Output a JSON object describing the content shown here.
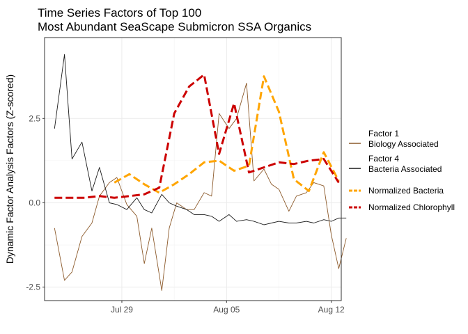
{
  "chart_data": {
    "type": "line",
    "title_lines": [
      "Time Series Factors of Top 100",
      "Most Abundant SeaScape Submicron SSA Organics"
    ],
    "xlabel": "",
    "ylabel": "Dynamic Factor Analysis Factors (Z-scored)",
    "x_is_date": true,
    "x_ticks": [
      {
        "value": "2019-07-29",
        "label": "Jul 29"
      },
      {
        "value": "2019-08-05",
        "label": "Aug 05"
      },
      {
        "value": "2019-08-12",
        "label": "Aug 12"
      }
    ],
    "y_ticks": [
      -2.5,
      0.0,
      2.5
    ],
    "y_tick_labels": [
      "-2.5",
      "0.0",
      "2.5"
    ],
    "xlim": [
      "2019-07-23T20:00",
      "2019-08-12T16:00"
    ],
    "ylim": [
      -2.9,
      4.9
    ],
    "grid": true,
    "legend_position": "right",
    "series": [
      {
        "name": [
          "Factor 1",
          "Biology Associated"
        ],
        "color": "#8c5a2b",
        "style": "solid",
        "width": "thin",
        "points": [
          [
            "2019-07-24T12:00",
            -0.75
          ],
          [
            "2019-07-25T04:00",
            -2.3
          ],
          [
            "2019-07-25T16:00",
            -2.05
          ],
          [
            "2019-07-26T08:00",
            -1.0
          ],
          [
            "2019-07-27T00:00",
            -0.6
          ],
          [
            "2019-07-27T12:00",
            0.2
          ],
          [
            "2019-07-28T04:00",
            0.6
          ],
          [
            "2019-07-28T16:00",
            0.75
          ],
          [
            "2019-07-29T08:00",
            -0.05
          ],
          [
            "2019-07-30T00:00",
            -0.4
          ],
          [
            "2019-07-30T12:00",
            -1.8
          ],
          [
            "2019-07-31T00:00",
            -0.75
          ],
          [
            "2019-07-31T16:00",
            -2.6
          ],
          [
            "2019-08-01T04:00",
            -0.75
          ],
          [
            "2019-08-01T16:00",
            0.0
          ],
          [
            "2019-08-02T08:00",
            -0.2
          ],
          [
            "2019-08-02T20:00",
            -0.2
          ],
          [
            "2019-08-03T12:00",
            0.3
          ],
          [
            "2019-08-04T00:00",
            0.2
          ],
          [
            "2019-08-04T12:00",
            2.65
          ],
          [
            "2019-08-05T04:00",
            2.2
          ],
          [
            "2019-08-05T16:00",
            2.5
          ],
          [
            "2019-08-06T08:00",
            3.55
          ],
          [
            "2019-08-06T20:00",
            0.65
          ],
          [
            "2019-08-07T12:00",
            1.0
          ],
          [
            "2019-08-08T00:00",
            0.55
          ],
          [
            "2019-08-08T12:00",
            0.4
          ],
          [
            "2019-08-09T04:00",
            -0.25
          ],
          [
            "2019-08-09T16:00",
            0.2
          ],
          [
            "2019-08-10T08:00",
            0.3
          ],
          [
            "2019-08-10T20:00",
            0.6
          ],
          [
            "2019-08-11T12:00",
            0.5
          ],
          [
            "2019-08-12T00:00",
            -0.95
          ],
          [
            "2019-08-12T12:00",
            -1.95
          ],
          [
            "2019-08-13T00:00",
            -1.05
          ]
        ]
      },
      {
        "name": [
          "Factor 4",
          "Bacteria Associated"
        ],
        "color": "#1a1a1a",
        "style": "solid",
        "width": "thin",
        "points": [
          [
            "2019-07-24T12:00",
            2.2
          ],
          [
            "2019-07-25T04:00",
            4.4
          ],
          [
            "2019-07-25T16:00",
            1.3
          ],
          [
            "2019-07-26T08:00",
            1.8
          ],
          [
            "2019-07-27T00:00",
            0.35
          ],
          [
            "2019-07-27T12:00",
            1.05
          ],
          [
            "2019-07-28T04:00",
            0.0
          ],
          [
            "2019-07-28T16:00",
            -0.05
          ],
          [
            "2019-07-29T08:00",
            -0.2
          ],
          [
            "2019-07-30T00:00",
            0.15
          ],
          [
            "2019-07-30T12:00",
            -0.2
          ],
          [
            "2019-07-31T00:00",
            -0.3
          ],
          [
            "2019-07-31T16:00",
            0.25
          ],
          [
            "2019-08-01T04:00",
            0.0
          ],
          [
            "2019-08-01T16:00",
            -0.1
          ],
          [
            "2019-08-02T08:00",
            -0.2
          ],
          [
            "2019-08-02T20:00",
            -0.35
          ],
          [
            "2019-08-03T12:00",
            -0.35
          ],
          [
            "2019-08-04T00:00",
            -0.4
          ],
          [
            "2019-08-04T12:00",
            -0.55
          ],
          [
            "2019-08-05T04:00",
            -0.35
          ],
          [
            "2019-08-05T16:00",
            -0.55
          ],
          [
            "2019-08-06T08:00",
            -0.5
          ],
          [
            "2019-08-06T20:00",
            -0.55
          ],
          [
            "2019-08-07T12:00",
            -0.65
          ],
          [
            "2019-08-08T00:00",
            -0.6
          ],
          [
            "2019-08-08T12:00",
            -0.55
          ],
          [
            "2019-08-09T04:00",
            -0.6
          ],
          [
            "2019-08-09T16:00",
            -0.6
          ],
          [
            "2019-08-10T08:00",
            -0.55
          ],
          [
            "2019-08-10T20:00",
            -0.6
          ],
          [
            "2019-08-11T12:00",
            -0.5
          ],
          [
            "2019-08-12T00:00",
            -0.55
          ],
          [
            "2019-08-12T12:00",
            -0.45
          ],
          [
            "2019-08-13T00:00",
            -0.45
          ]
        ]
      },
      {
        "name": "Normalized Bacteria",
        "color": "#ffa500",
        "style": "dashed",
        "width": "thick",
        "points": [
          [
            "2019-07-28T12:00",
            0.6
          ],
          [
            "2019-07-29T12:00",
            0.85
          ],
          [
            "2019-07-30T12:00",
            0.55
          ],
          [
            "2019-07-31T12:00",
            0.3
          ],
          [
            "2019-08-01T12:00",
            0.55
          ],
          [
            "2019-08-02T12:00",
            0.85
          ],
          [
            "2019-08-03T12:00",
            1.2
          ],
          [
            "2019-08-04T12:00",
            1.25
          ],
          [
            "2019-08-05T12:00",
            0.95
          ],
          [
            "2019-08-06T12:00",
            1.1
          ],
          [
            "2019-08-07T12:00",
            3.75
          ],
          [
            "2019-08-08T12:00",
            2.7
          ],
          [
            "2019-08-09T12:00",
            0.7
          ],
          [
            "2019-08-10T12:00",
            0.35
          ],
          [
            "2019-08-11T12:00",
            1.5
          ],
          [
            "2019-08-12T12:00",
            0.65
          ]
        ]
      },
      {
        "name": "Normalized Chlorophyll",
        "color": "#cc0000",
        "style": "dashed",
        "width": "thick",
        "points": [
          [
            "2019-07-24T12:00",
            0.15
          ],
          [
            "2019-07-25T12:00",
            0.15
          ],
          [
            "2019-07-26T12:00",
            0.15
          ],
          [
            "2019-07-27T12:00",
            0.2
          ],
          [
            "2019-07-28T12:00",
            0.15
          ],
          [
            "2019-07-29T12:00",
            0.2
          ],
          [
            "2019-07-30T12:00",
            0.25
          ],
          [
            "2019-07-31T12:00",
            0.45
          ],
          [
            "2019-08-01T12:00",
            2.65
          ],
          [
            "2019-08-02T12:00",
            3.45
          ],
          [
            "2019-08-03T12:00",
            3.8
          ],
          [
            "2019-08-04T12:00",
            1.45
          ],
          [
            "2019-08-05T12:00",
            2.95
          ],
          [
            "2019-08-06T12:00",
            0.9
          ],
          [
            "2019-08-07T12:00",
            1.05
          ],
          [
            "2019-08-08T12:00",
            1.2
          ],
          [
            "2019-08-09T12:00",
            1.15
          ],
          [
            "2019-08-10T12:00",
            1.25
          ],
          [
            "2019-08-11T12:00",
            1.3
          ],
          [
            "2019-08-12T12:00",
            0.6
          ]
        ]
      }
    ]
  }
}
